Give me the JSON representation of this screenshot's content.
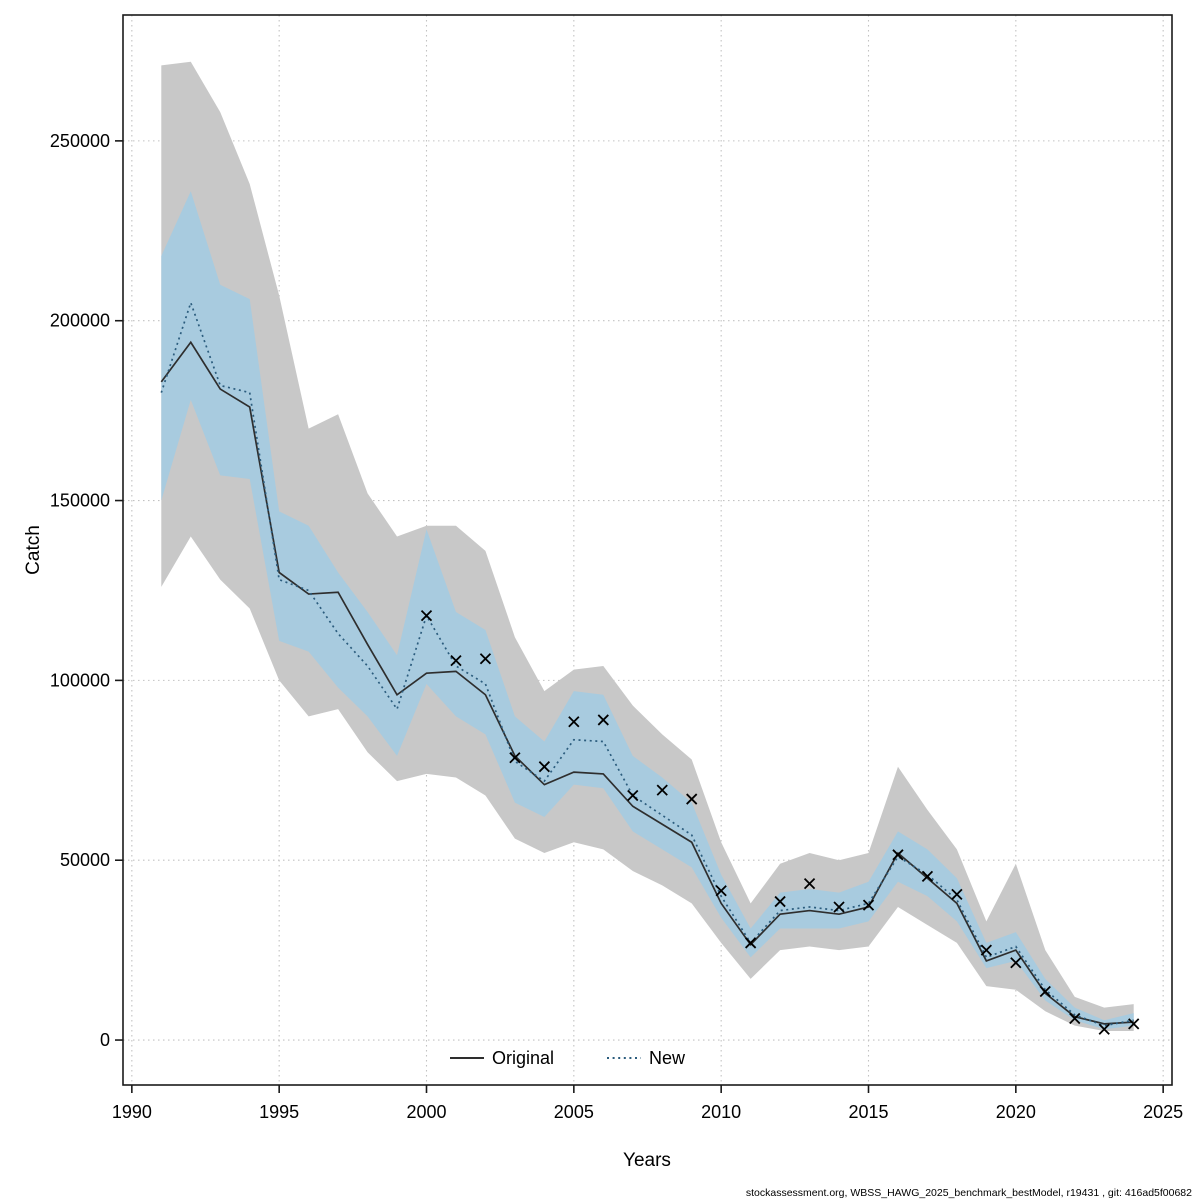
{
  "figure": {
    "background": "#ffffff",
    "grid_color": "#c2c2c2",
    "frame_color": "#1a1a1a"
  },
  "footer": {
    "attribution": "stockassessment.org, WBSS_HAWG_2025_benchmark_bestModel, r19431 , git: 416ad5f00682"
  },
  "chart_data": {
    "type": "line",
    "title": "",
    "xlabel": "Years",
    "ylabel": "Catch",
    "xlim": [
      1989.7,
      2025.3
    ],
    "ylim": [
      -12500,
      285000
    ],
    "xticks": [
      1990,
      1995,
      2000,
      2005,
      2010,
      2015,
      2020,
      2025
    ],
    "xticklabels": [
      "1990",
      "1995",
      "2000",
      "2005",
      "2010",
      "2015",
      "2020",
      "2025"
    ],
    "yticks": [
      0,
      50000,
      100000,
      150000,
      200000,
      250000
    ],
    "yticklabels": [
      "0",
      "50000",
      "100000",
      "150000",
      "200000",
      "250000"
    ],
    "grid": true,
    "legend_position": "bottom-center-inside",
    "x": [
      1991,
      1992,
      1993,
      1994,
      1995,
      1996,
      1997,
      1998,
      1999,
      2000,
      2001,
      2002,
      2003,
      2004,
      2005,
      2006,
      2007,
      2008,
      2009,
      2010,
      2011,
      2012,
      2013,
      2014,
      2015,
      2016,
      2017,
      2018,
      2019,
      2020,
      2021,
      2022,
      2023,
      2024
    ],
    "series": [
      {
        "name": "Original",
        "style": "solid",
        "color": "#2e2e2e",
        "values": [
          183000,
          194000,
          181000,
          176000,
          130000,
          124000,
          124500,
          110000,
          96000,
          102000,
          102500,
          96000,
          79000,
          71000,
          74500,
          74000,
          65000,
          60000,
          55000,
          38000,
          26500,
          35000,
          36000,
          35000,
          37000,
          52000,
          45000,
          38000,
          22000,
          25000,
          13000,
          6500,
          4500,
          5000
        ],
        "band": {
          "color": "#c8c8c8",
          "lower": [
            126000,
            140000,
            128000,
            120000,
            100000,
            90000,
            92000,
            80000,
            72000,
            74000,
            73000,
            68000,
            56000,
            52000,
            55000,
            53000,
            47000,
            43000,
            38000,
            27000,
            17000,
            25000,
            26000,
            25000,
            26000,
            37000,
            32000,
            27000,
            15000,
            14000,
            8000,
            4000,
            2500,
            2500
          ],
          "upper": [
            271000,
            272000,
            258000,
            238000,
            207000,
            170000,
            174000,
            152000,
            140000,
            143000,
            143000,
            136000,
            112000,
            97000,
            103000,
            104000,
            93000,
            85000,
            78000,
            55000,
            38000,
            49000,
            52000,
            50000,
            52000,
            76000,
            64000,
            53000,
            33000,
            49000,
            25000,
            12000,
            9000,
            10000
          ]
        }
      },
      {
        "name": "New",
        "style": "dotted",
        "color": "#2b5c7d",
        "values": [
          180000,
          205000,
          182000,
          180000,
          128000,
          125000,
          113000,
          104000,
          92000,
          118000,
          104000,
          99000,
          77500,
          72000,
          83500,
          83000,
          68000,
          62500,
          57000,
          40000,
          27000,
          36000,
          37000,
          36000,
          38000,
          51000,
          46000,
          39000,
          23000,
          26000,
          14000,
          7000,
          4000,
          5500
        ],
        "band": {
          "color": "#a8cbdf",
          "lower": [
            150000,
            178000,
            157000,
            156000,
            111000,
            108000,
            98000,
            90000,
            79000,
            99000,
            90000,
            85000,
            66000,
            62000,
            71000,
            70000,
            58000,
            53000,
            48000,
            34000,
            23000,
            31000,
            31000,
            31000,
            33000,
            44000,
            40000,
            33000,
            20000,
            22000,
            11000,
            5500,
            3000,
            4000
          ],
          "upper": [
            218000,
            236000,
            210000,
            206000,
            147000,
            143000,
            130000,
            119000,
            107000,
            142000,
            119000,
            114000,
            90000,
            83000,
            97000,
            96000,
            79000,
            73000,
            66000,
            46000,
            31000,
            41000,
            42000,
            41000,
            44000,
            58000,
            53000,
            45000,
            27000,
            30000,
            17000,
            9000,
            5500,
            7500
          ]
        }
      }
    ],
    "observations": {
      "marker": "x",
      "color": "#000000",
      "x": [
        2000,
        2001,
        2002,
        2003,
        2004,
        2005,
        2006,
        2007,
        2008,
        2009,
        2010,
        2011,
        2012,
        2013,
        2014,
        2015,
        2016,
        2017,
        2018,
        2019,
        2020,
        2021,
        2022,
        2023,
        2024
      ],
      "values": [
        118000,
        105500,
        106000,
        78500,
        76000,
        88500,
        89000,
        68000,
        69500,
        67000,
        41500,
        27000,
        38500,
        43500,
        37000,
        37500,
        51500,
        45500,
        40500,
        25000,
        21500,
        13500,
        6000,
        3000,
        4500
      ]
    }
  }
}
